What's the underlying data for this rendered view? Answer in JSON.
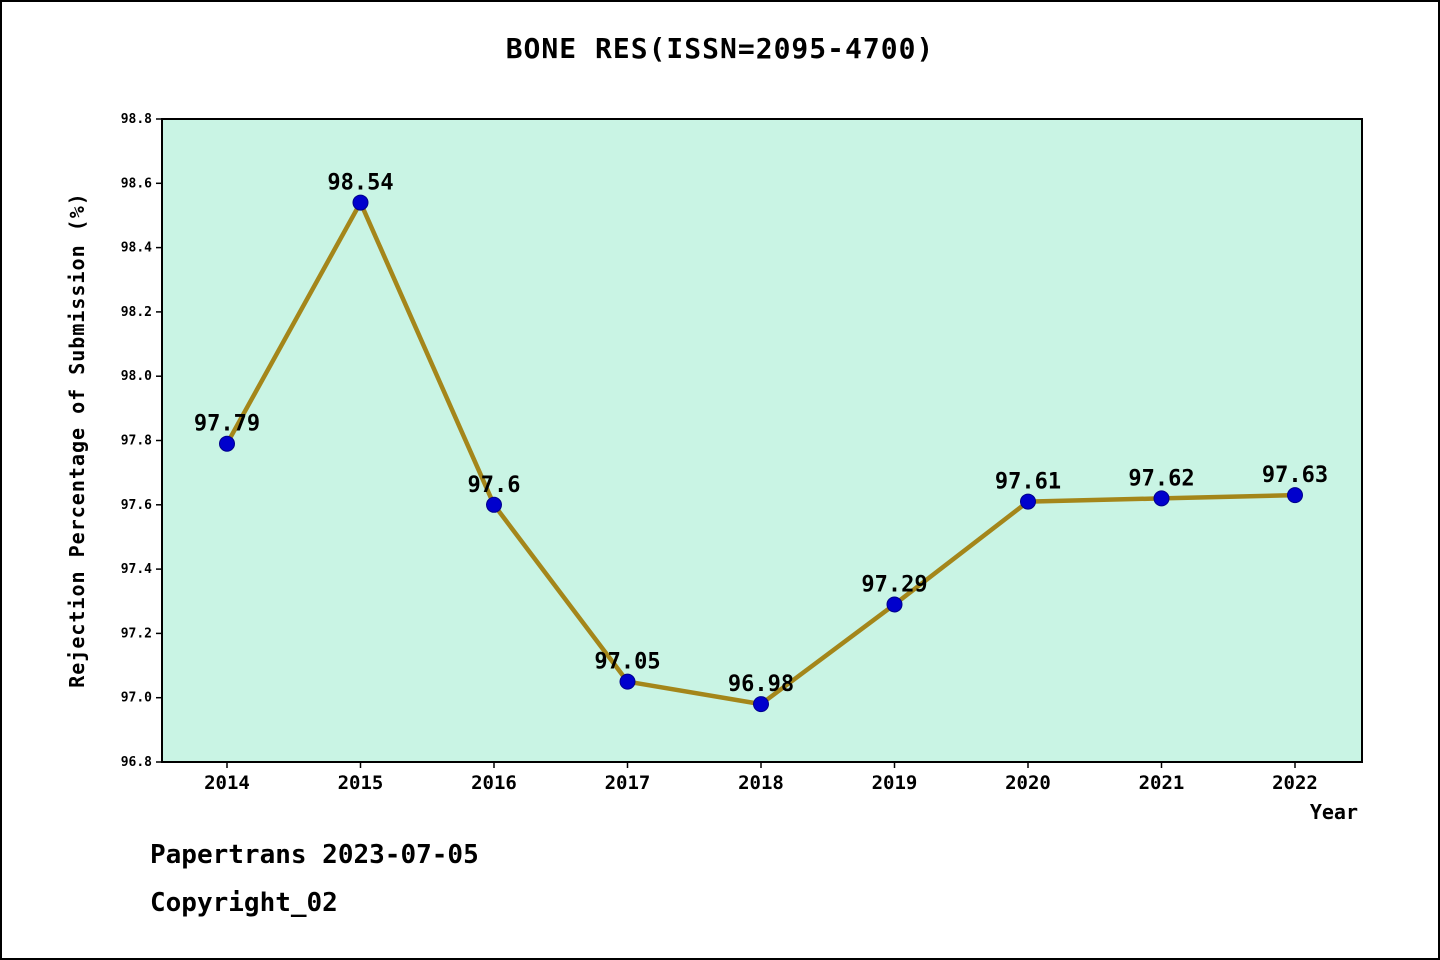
{
  "page": {
    "footer_line1": "Papertrans 2023-07-05",
    "footer_line2": "Copyright_02"
  },
  "chart_data": {
    "type": "line",
    "title": "BONE RES(ISSN=2095-4700)",
    "xlabel": "Year",
    "ylabel": "Rejection Percentage of Submission (%)",
    "categories": [
      "2014",
      "2015",
      "2016",
      "2017",
      "2018",
      "2019",
      "2020",
      "2021",
      "2022"
    ],
    "values": [
      97.79,
      98.54,
      97.6,
      97.05,
      96.98,
      97.29,
      97.61,
      97.62,
      97.63
    ],
    "point_labels": [
      "97.79",
      "98.54",
      "97.6",
      "97.05",
      "96.98",
      "97.29",
      "97.61",
      "97.62",
      "97.63"
    ],
    "ylim": [
      96.8,
      98.8
    ],
    "ytick_step": 0.2,
    "ytick_labels": [
      "96.8",
      "97.0",
      "97.2",
      "97.4",
      "97.6",
      "97.8",
      "98.0",
      "98.2",
      "98.4",
      "98.6",
      "98.8"
    ],
    "grid": false,
    "legend": "none",
    "colors": {
      "plot_background": "#c9f4e4",
      "line": "#a4861a",
      "marker_fill": "#0000cd",
      "marker_edge": "#00008b",
      "axis": "#000000",
      "text": "#000000"
    }
  }
}
